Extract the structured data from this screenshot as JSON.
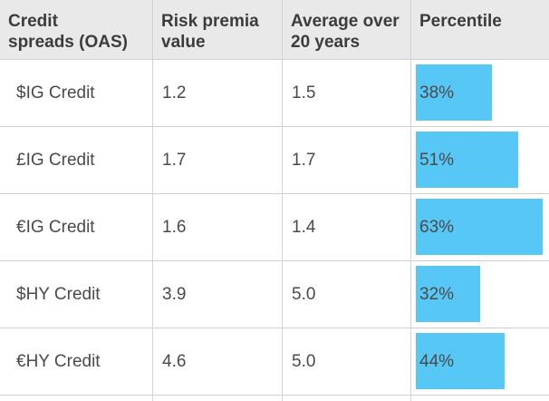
{
  "headers": {
    "col1": "Credit\nspreads (OAS)",
    "col2": "Risk premia\nvalue",
    "col3": "Average over\n20 years",
    "col4": "Percentile"
  },
  "rows": [
    {
      "name": "$IG Credit",
      "risk_premia": "1.2",
      "average_20y": "1.5",
      "percentile_label": "38%",
      "percentile": 38
    },
    {
      "name": "£IG Credit",
      "risk_premia": "1.7",
      "average_20y": "1.7",
      "percentile_label": "51%",
      "percentile": 51
    },
    {
      "name": "€IG Credit",
      "risk_premia": "1.6",
      "average_20y": "1.4",
      "percentile_label": "63%",
      "percentile": 63
    },
    {
      "name": "$HY Credit",
      "risk_premia": "3.9",
      "average_20y": "5.0",
      "percentile_label": "32%",
      "percentile": 32
    },
    {
      "name": "€HY Credit",
      "risk_premia": "4.6",
      "average_20y": "5.0",
      "percentile_label": "44%",
      "percentile": 44
    }
  ],
  "colors": {
    "bar": "#57c7f5",
    "header_bg": "#e9e9e9"
  }
}
